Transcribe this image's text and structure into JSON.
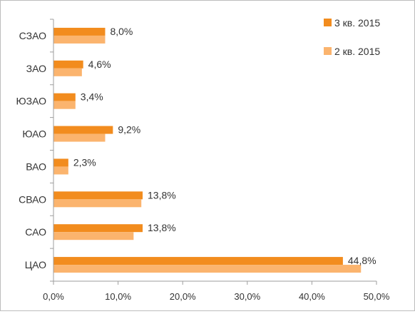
{
  "chart_data": {
    "type": "bar",
    "orientation": "horizontal",
    "categories": [
      "СЗАО",
      "ЗАО",
      "ЮЗАО",
      "ЮАО",
      "ВАО",
      "СВАО",
      "САО",
      "ЦАО"
    ],
    "series": [
      {
        "name": "3 кв. 2015",
        "color": "#f28c1e",
        "values": [
          8.0,
          4.6,
          3.4,
          9.2,
          2.3,
          13.8,
          13.8,
          44.8
        ],
        "labels": [
          "8,0%",
          "4,6%",
          "3,4%",
          "9,2%",
          "2,3%",
          "13,8%",
          "13,8%",
          "44,8%"
        ]
      },
      {
        "name": "2 кв. 2015",
        "color": "#fbb46e",
        "values": [
          8.0,
          4.4,
          3.4,
          8.0,
          2.3,
          13.6,
          12.4,
          47.6
        ]
      }
    ],
    "xlim": [
      0,
      50
    ],
    "x_ticks": [
      "0,0%",
      "10,0%",
      "20,0%",
      "30,0%",
      "40,0%",
      "50,0%"
    ],
    "legend_position": "top-right",
    "grid": false
  }
}
